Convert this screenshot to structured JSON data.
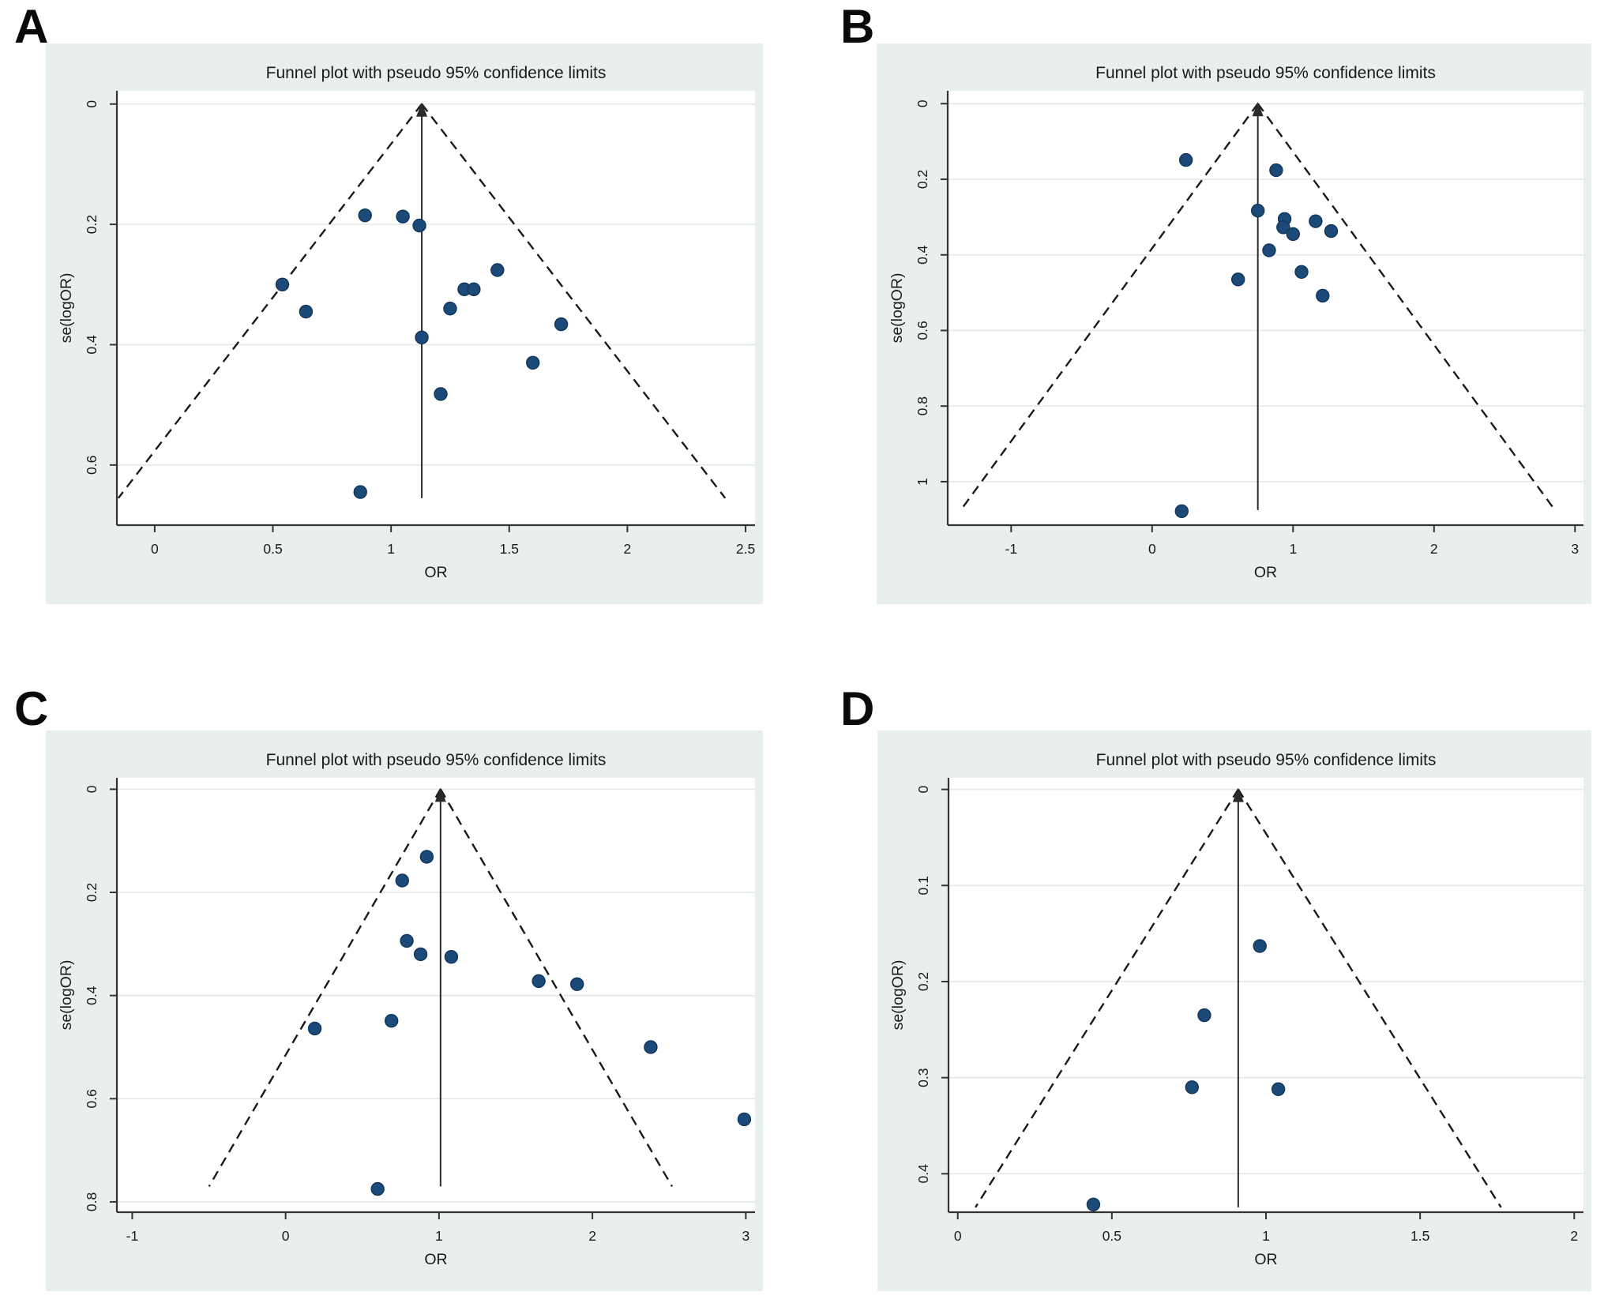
{
  "figure": {
    "panel_background": "#e9efec",
    "plot_background": "#ffffff",
    "grid_color": "#e4e9e6",
    "axis_color": "#333333",
    "text_color": "#1a1a1a",
    "funnel_line_color": "#1a1a1a",
    "center_line_color": "#2b2b2b",
    "point_fill": "#1c4a78",
    "point_stroke": "#12355a"
  },
  "chart_data": [
    {
      "panel_label": "A",
      "type": "scatter",
      "title": "Funnel plot with pseudo 95% confidence limits",
      "xlabel": "OR",
      "ylabel": "se(logOR)",
      "x_range": [
        -0.16,
        2.54
      ],
      "y_range": [
        -0.022,
        0.7
      ],
      "x_ticks": [
        0,
        0.5,
        1,
        1.5,
        2,
        2.5
      ],
      "x_tick_labels": [
        "0",
        "0.5",
        "1",
        "1.5",
        "2",
        "2.5"
      ],
      "y_ticks": [
        0,
        0.2,
        0.4,
        0.6
      ],
      "y_tick_labels": [
        "0",
        "0.2",
        "0.4",
        "0.6"
      ],
      "pooled_or": 1.13,
      "funnel_se_max": 0.655,
      "ci_slope": 1.96,
      "grid": true,
      "legend": "none",
      "points": [
        [
          0.89,
          0.185
        ],
        [
          1.05,
          0.187
        ],
        [
          1.12,
          0.202
        ],
        [
          0.54,
          0.3
        ],
        [
          0.64,
          0.345
        ],
        [
          1.45,
          0.276
        ],
        [
          1.31,
          0.308
        ],
        [
          1.35,
          0.308
        ],
        [
          1.25,
          0.34
        ],
        [
          1.72,
          0.366
        ],
        [
          1.13,
          0.388
        ],
        [
          1.6,
          0.43
        ],
        [
          1.21,
          0.482
        ],
        [
          0.87,
          0.645
        ]
      ]
    },
    {
      "panel_label": "B",
      "type": "scatter",
      "title": "Funnel plot with pseudo 95% confidence limits",
      "xlabel": "OR",
      "ylabel": "se(logOR)",
      "x_range": [
        -1.45,
        3.06
      ],
      "y_range": [
        -0.034,
        1.115
      ],
      "x_ticks": [
        -1,
        0,
        1,
        2,
        3
      ],
      "x_tick_labels": [
        "-1",
        "0",
        "1",
        "2",
        "3"
      ],
      "y_ticks": [
        0,
        0.2,
        0.4,
        0.6,
        0.8,
        1
      ],
      "y_tick_labels": [
        "0",
        "0.2",
        "0.4",
        "0.6",
        "0.8",
        "1"
      ],
      "pooled_or": 0.75,
      "funnel_se_max": 1.075,
      "ci_slope": 1.96,
      "grid": true,
      "legend": "none",
      "points": [
        [
          0.24,
          0.149
        ],
        [
          0.88,
          0.176
        ],
        [
          0.75,
          0.283
        ],
        [
          0.94,
          0.305
        ],
        [
          0.93,
          0.327
        ],
        [
          1.16,
          0.311
        ],
        [
          1.0,
          0.345
        ],
        [
          1.27,
          0.337
        ],
        [
          0.83,
          0.388
        ],
        [
          1.06,
          0.445
        ],
        [
          0.61,
          0.465
        ],
        [
          1.21,
          0.508
        ],
        [
          0.21,
          1.078
        ]
      ]
    },
    {
      "panel_label": "C",
      "type": "scatter",
      "title": "Funnel plot with pseudo 95% confidence limits",
      "xlabel": "OR",
      "ylabel": "se(logOR)",
      "x_range": [
        -1.1,
        3.06
      ],
      "y_range": [
        -0.022,
        0.82
      ],
      "x_ticks": [
        -1,
        0,
        1,
        2,
        3
      ],
      "x_tick_labels": [
        "-1",
        "0",
        "1",
        "2",
        "3"
      ],
      "y_ticks": [
        0,
        0.2,
        0.4,
        0.6,
        0.8
      ],
      "y_tick_labels": [
        "0",
        "0.2",
        "0.4",
        "0.6",
        "0.8"
      ],
      "pooled_or": 1.01,
      "funnel_se_max": 0.77,
      "ci_slope": 1.96,
      "grid": true,
      "legend": "none",
      "points": [
        [
          0.92,
          0.131
        ],
        [
          0.76,
          0.177
        ],
        [
          0.79,
          0.294
        ],
        [
          0.88,
          0.32
        ],
        [
          1.08,
          0.325
        ],
        [
          1.65,
          0.372
        ],
        [
          1.9,
          0.378
        ],
        [
          0.69,
          0.449
        ],
        [
          0.19,
          0.464
        ],
        [
          2.38,
          0.5
        ],
        [
          2.99,
          0.64
        ],
        [
          0.6,
          0.775
        ]
      ]
    },
    {
      "panel_label": "D",
      "type": "scatter",
      "title": "Funnel plot with pseudo 95% confidence limits",
      "xlabel": "OR",
      "ylabel": "se(logOR)",
      "x_range": [
        -0.03,
        2.03
      ],
      "y_range": [
        -0.012,
        0.44
      ],
      "x_ticks": [
        0,
        0.5,
        1,
        1.5,
        2
      ],
      "x_tick_labels": [
        "0",
        "0.5",
        "1",
        "1.5",
        "2"
      ],
      "y_ticks": [
        0,
        0.1,
        0.2,
        0.3,
        0.4
      ],
      "y_tick_labels": [
        "0",
        "0.1",
        "0.2",
        "0.3",
        "0.4"
      ],
      "pooled_or": 0.91,
      "funnel_se_max": 0.435,
      "ci_slope": 1.96,
      "grid": true,
      "legend": "none",
      "points": [
        [
          0.98,
          0.163
        ],
        [
          0.8,
          0.235
        ],
        [
          0.76,
          0.31
        ],
        [
          1.04,
          0.312
        ],
        [
          0.44,
          0.432
        ]
      ]
    }
  ]
}
